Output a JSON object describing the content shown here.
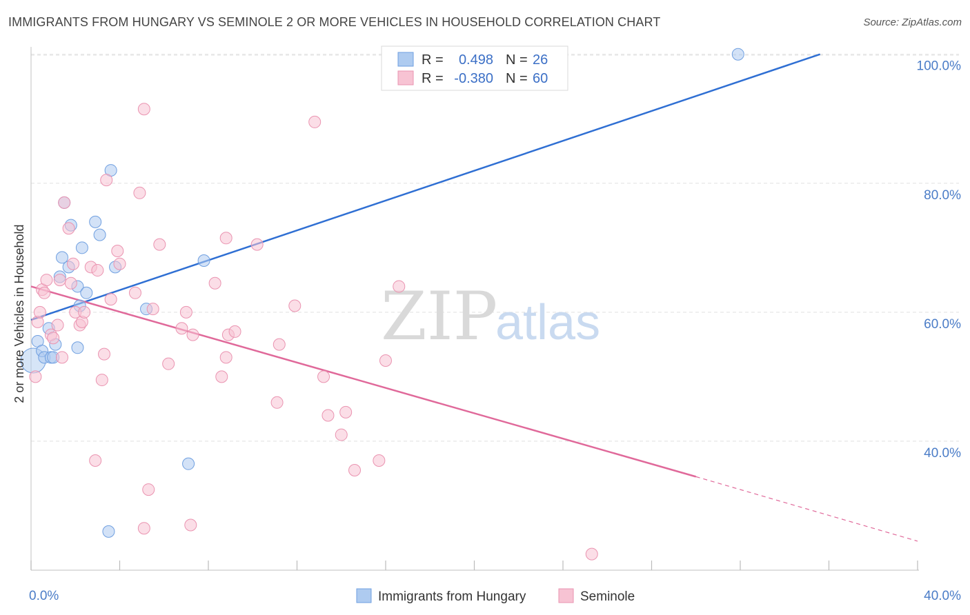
{
  "title": "IMMIGRANTS FROM HUNGARY VS SEMINOLE 2 OR MORE VEHICLES IN HOUSEHOLD CORRELATION CHART",
  "source": "Source: ZipAtlas.com",
  "watermark": {
    "zip": "ZIP",
    "atlas": "atlas"
  },
  "colors": {
    "blue_fill": "#aecbf0",
    "blue_stroke": "#6f9fe0",
    "blue_line": "#2f6fd3",
    "pink_fill": "#f7c3d3",
    "pink_stroke": "#ea93b0",
    "pink_line": "#e0699a",
    "grid": "#e0e0e0",
    "tick_label": "#4a7cc7"
  },
  "legend": {
    "r_label": "R =",
    "n_label": "N =",
    "rows": [
      {
        "r": "0.498",
        "n": "26"
      },
      {
        "r": "-0.380",
        "n": "60"
      }
    ]
  },
  "chart_data": {
    "type": "scatter",
    "xlabel": "",
    "ylabel": "2 or more Vehicles in Household",
    "xlim": [
      0,
      40
    ],
    "ylim": [
      20,
      102
    ],
    "x_tick_labels": [
      "0.0%",
      "40.0%"
    ],
    "y_ticks": [
      40,
      60,
      80,
      100
    ],
    "y_tick_labels": [
      "40.0%",
      "60.0%",
      "80.0%",
      "100.0%"
    ],
    "grid": true,
    "legend_position": "top-center",
    "series": [
      {
        "name": "Immigrants from Hungary",
        "color": "blue",
        "r": 0.498,
        "n": 26,
        "trend": {
          "x0": 0,
          "y0": 58.8,
          "x1": 35.6,
          "y1": 100
        },
        "points": [
          [
            0.3,
            55.5
          ],
          [
            0.5,
            54.0
          ],
          [
            0.6,
            53.0
          ],
          [
            0.8,
            57.5
          ],
          [
            0.9,
            53.0
          ],
          [
            1.0,
            53.0
          ],
          [
            1.1,
            55.0
          ],
          [
            1.3,
            65.5
          ],
          [
            1.4,
            68.5
          ],
          [
            1.5,
            77.0
          ],
          [
            1.7,
            67.0
          ],
          [
            1.8,
            73.5
          ],
          [
            2.1,
            64.0
          ],
          [
            2.2,
            61.0
          ],
          [
            2.3,
            70.0
          ],
          [
            2.5,
            63.0
          ],
          [
            2.1,
            54.5
          ],
          [
            2.9,
            74.0
          ],
          [
            3.1,
            72.0
          ],
          [
            3.5,
            26.0
          ],
          [
            3.6,
            82.0
          ],
          [
            3.8,
            67.0
          ],
          [
            5.2,
            60.5
          ],
          [
            7.1,
            36.5
          ],
          [
            7.8,
            68.0
          ],
          [
            31.9,
            100.0
          ]
        ],
        "big_points": [
          [
            0.1,
            52.5
          ]
        ]
      },
      {
        "name": "Seminole",
        "color": "pink",
        "r": -0.38,
        "n": 60,
        "trend": {
          "x0": 0,
          "y0": 64.0,
          "x1": 30.0,
          "y1": 34.5
        },
        "trend_dashed": {
          "x0": 30.0,
          "y0": 34.5,
          "x1": 40.0,
          "y1": 24.5
        },
        "points": [
          [
            0.2,
            50.0
          ],
          [
            0.3,
            58.5
          ],
          [
            0.4,
            60.0
          ],
          [
            0.5,
            63.5
          ],
          [
            0.6,
            63.0
          ],
          [
            0.7,
            65.0
          ],
          [
            0.9,
            56.5
          ],
          [
            1.0,
            56.0
          ],
          [
            1.2,
            58.0
          ],
          [
            1.3,
            65.0
          ],
          [
            1.4,
            53.0
          ],
          [
            1.5,
            77.0
          ],
          [
            1.7,
            73.0
          ],
          [
            1.8,
            64.5
          ],
          [
            1.9,
            67.5
          ],
          [
            2.0,
            60.0
          ],
          [
            2.2,
            58.0
          ],
          [
            2.3,
            58.5
          ],
          [
            2.4,
            60.0
          ],
          [
            2.7,
            67.0
          ],
          [
            2.9,
            37.0
          ],
          [
            3.0,
            66.5
          ],
          [
            3.2,
            49.5
          ],
          [
            3.3,
            53.5
          ],
          [
            3.4,
            80.5
          ],
          [
            3.6,
            62.0
          ],
          [
            3.9,
            69.5
          ],
          [
            4.0,
            67.5
          ],
          [
            4.7,
            63.0
          ],
          [
            4.9,
            78.5
          ],
          [
            5.1,
            91.5
          ],
          [
            5.3,
            32.5
          ],
          [
            5.5,
            60.5
          ],
          [
            5.8,
            70.5
          ],
          [
            5.1,
            26.5
          ],
          [
            6.2,
            52.0
          ],
          [
            6.8,
            57.5
          ],
          [
            7.0,
            60.0
          ],
          [
            7.2,
            27.0
          ],
          [
            7.3,
            56.5
          ],
          [
            8.3,
            64.5
          ],
          [
            8.6,
            50.0
          ],
          [
            8.8,
            71.5
          ],
          [
            8.8,
            53.0
          ],
          [
            8.9,
            56.5
          ],
          [
            9.2,
            57.0
          ],
          [
            10.2,
            70.5
          ],
          [
            11.1,
            46.0
          ],
          [
            11.2,
            55.0
          ],
          [
            11.9,
            61.0
          ],
          [
            12.8,
            89.5
          ],
          [
            13.2,
            50.0
          ],
          [
            13.4,
            44.0
          ],
          [
            14.0,
            41.0
          ],
          [
            14.2,
            44.5
          ],
          [
            14.6,
            35.5
          ],
          [
            15.7,
            37.0
          ],
          [
            16.6,
            64.0
          ],
          [
            16.0,
            52.5
          ],
          [
            25.3,
            22.5
          ]
        ]
      }
    ]
  }
}
